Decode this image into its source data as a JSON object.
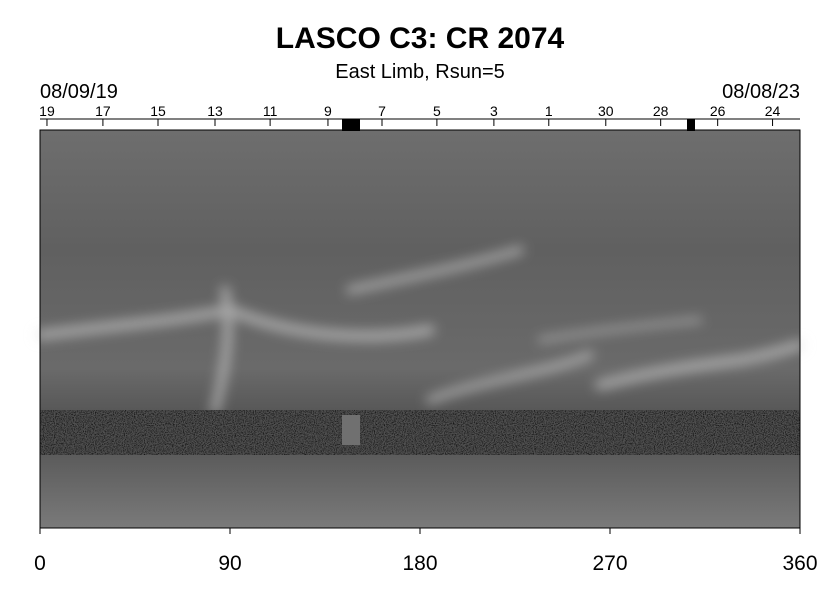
{
  "chart_data": {
    "type": "synoptic-map",
    "title": "LASCO C3: CR 2074",
    "subtitle": "East Limb, Rsun=5",
    "start_date": "08/09/19",
    "end_date": "08/08/23",
    "xlim": [
      0,
      360
    ],
    "xticks": [
      0,
      90,
      180,
      270,
      360
    ],
    "day_ticks": [
      {
        "value": 3.3,
        "label": "19"
      },
      {
        "value": 29.8,
        "label": "17"
      },
      {
        "value": 55.9,
        "label": "15"
      },
      {
        "value": 82.9,
        "label": "13"
      },
      {
        "value": 109,
        "label": "11"
      },
      {
        "value": 136.4,
        "label": "9"
      },
      {
        "value": 162,
        "label": "7"
      },
      {
        "value": 188,
        "label": "5"
      },
      {
        "value": 215,
        "label": "3"
      },
      {
        "value": 241,
        "label": "1"
      },
      {
        "value": 268,
        "label": "30"
      },
      {
        "value": 294,
        "label": "28"
      },
      {
        "value": 321,
        "label": "26"
      },
      {
        "value": 347,
        "label": "24"
      }
    ]
  }
}
